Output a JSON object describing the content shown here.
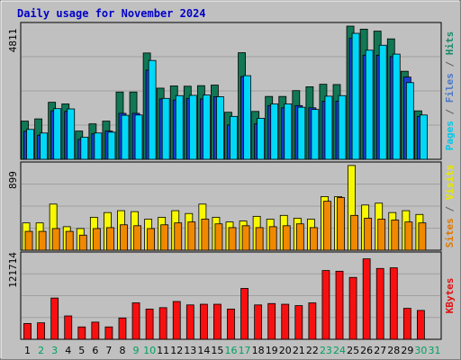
{
  "chart_data": {
    "type": "bar",
    "title": "Daily usage for November 2024",
    "categories": [
      "1",
      "2",
      "3",
      "4",
      "5",
      "6",
      "7",
      "8",
      "9",
      "10",
      "11",
      "12",
      "13",
      "14",
      "15",
      "16",
      "17",
      "18",
      "19",
      "20",
      "21",
      "22",
      "23",
      "24",
      "25",
      "26",
      "27",
      "28",
      "29",
      "30",
      "31"
    ],
    "weekend_days": [
      "2",
      "3",
      "9",
      "10",
      "16",
      "17",
      "23",
      "24",
      "30",
      "31"
    ],
    "panels": [
      {
        "id": "top",
        "max_label": "4811",
        "right_labels": [
          {
            "text": "Pages",
            "color": "#00c8e8"
          },
          {
            "text": " / ",
            "color": "#606060"
          },
          {
            "text": "Files",
            "color": "#4a78c8"
          },
          {
            "text": " / ",
            "color": "#606060"
          },
          {
            "text": "Hits",
            "color": "#1a8a6a"
          }
        ],
        "ylim": [
          0,
          4811
        ],
        "series": [
          {
            "name": "Hits",
            "color": "#117755",
            "values": [
              1380,
              1460,
              2060,
              2000,
              1020,
              1280,
              1380,
              2430,
              2430,
              3840,
              2570,
              2650,
              2640,
              2660,
              2680,
              1700,
              3850,
              1730,
              2270,
              2270,
              2480,
              2620,
              2710,
              2700,
              4810,
              4700,
              4630,
              4350,
              3180,
              1750,
              0
            ]
          },
          {
            "name": "Files",
            "color": "#1a3ed8",
            "values": [
              1010,
              870,
              1750,
              1730,
              720,
              920,
              1020,
              1660,
              1660,
              3220,
              2180,
              2140,
              2200,
              2180,
              2260,
              1240,
              2990,
              1280,
              1940,
              1860,
              1940,
              1860,
              2100,
              2100,
              4370,
              3760,
              3760,
              3710,
              2970,
              1550,
              0
            ]
          },
          {
            "name": "Pages",
            "color": "#00d8f8",
            "values": [
              1080,
              950,
              1830,
              1820,
              800,
              950,
              980,
              1590,
              1600,
              3570,
              2200,
              2300,
              2310,
              2320,
              2260,
              1550,
              3020,
              1480,
              2000,
              2000,
              1880,
              1800,
              2280,
              2300,
              4550,
              3940,
              4120,
              3800,
              2770,
              1600,
              0
            ]
          }
        ]
      },
      {
        "id": "middle",
        "max_label": "899",
        "right_labels": [
          {
            "text": "Sites",
            "color": "#e07800"
          },
          {
            "text": " / ",
            "color": "#606060"
          },
          {
            "text": "Visits",
            "color": "#e8e800"
          }
        ],
        "ylim": [
          0,
          899
        ],
        "series": [
          {
            "name": "Visits",
            "color": "#f8f800",
            "values": [
              290,
              290,
              490,
              250,
              230,
              350,
              400,
              420,
              410,
              330,
              350,
              420,
              390,
              490,
              350,
              300,
              310,
              360,
              330,
              370,
              340,
              330,
              570,
              570,
              900,
              480,
              500,
              400,
              420,
              380,
              0
            ]
          },
          {
            "name": "Sites",
            "color": "#f08800",
            "values": [
              200,
              200,
              230,
              200,
              160,
              230,
              240,
              270,
              260,
              230,
              270,
              290,
              300,
              330,
              280,
              240,
              260,
              240,
              250,
              260,
              280,
              240,
              520,
              560,
              370,
              340,
              330,
              320,
              300,
              290,
              0
            ]
          }
        ]
      },
      {
        "id": "bottom",
        "max_label": "121714",
        "right_labels": [
          {
            "text": "KBytes",
            "color": "#e01010"
          }
        ],
        "ylim": [
          0,
          121714
        ],
        "series": [
          {
            "name": "KBytes",
            "color": "#f81010",
            "values": [
              23000,
              24000,
              60000,
              34000,
              18000,
              25000,
              18000,
              31000,
              53000,
              44000,
              46000,
              55000,
              50000,
              51000,
              51000,
              44000,
              74000,
              50000,
              52000,
              51000,
              49000,
              53000,
              100000,
              99000,
              90000,
              117000,
              103000,
              104000,
              45000,
              42000,
              0
            ]
          }
        ]
      }
    ],
    "grid": true,
    "legend": "right"
  }
}
